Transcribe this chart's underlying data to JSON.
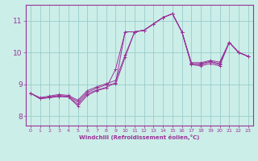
{
  "xlabel": "Windchill (Refroidissement éolien,°C)",
  "xlim": [
    -0.5,
    23.5
  ],
  "ylim": [
    7.7,
    11.5
  ],
  "xticks": [
    0,
    1,
    2,
    3,
    4,
    5,
    6,
    7,
    8,
    9,
    10,
    11,
    12,
    13,
    14,
    15,
    16,
    17,
    18,
    19,
    20,
    21,
    22,
    23
  ],
  "yticks": [
    8,
    9,
    10,
    11
  ],
  "background_color": "#cceee8",
  "line_color": "#993399",
  "grid_color": "#99cccc",
  "lines": [
    [
      8.72,
      8.55,
      8.58,
      8.62,
      8.6,
      8.32,
      8.65,
      8.8,
      8.88,
      9.48,
      10.65,
      10.65,
      10.7,
      10.9,
      11.1,
      11.22,
      10.65,
      9.62,
      9.58,
      9.65,
      9.58,
      10.32,
      10.0,
      9.88
    ],
    [
      8.72,
      8.55,
      8.58,
      8.62,
      8.6,
      8.38,
      8.7,
      8.82,
      8.9,
      9.05,
      10.65,
      10.65,
      10.7,
      10.9,
      11.1,
      11.22,
      10.65,
      9.62,
      9.62,
      9.7,
      9.62,
      10.32,
      10.0,
      9.88
    ],
    [
      8.72,
      8.55,
      8.6,
      8.65,
      8.62,
      8.45,
      8.75,
      8.88,
      8.98,
      9.02,
      9.85,
      10.65,
      10.7,
      10.9,
      11.1,
      11.22,
      10.65,
      9.65,
      9.65,
      9.72,
      9.65,
      10.32,
      10.0,
      9.88
    ],
    [
      8.72,
      8.58,
      8.63,
      8.68,
      8.65,
      8.5,
      8.8,
      8.92,
      9.02,
      9.12,
      9.92,
      10.65,
      10.7,
      10.9,
      11.1,
      11.22,
      10.65,
      9.68,
      9.68,
      9.75,
      9.7,
      10.32,
      10.0,
      9.88
    ]
  ]
}
